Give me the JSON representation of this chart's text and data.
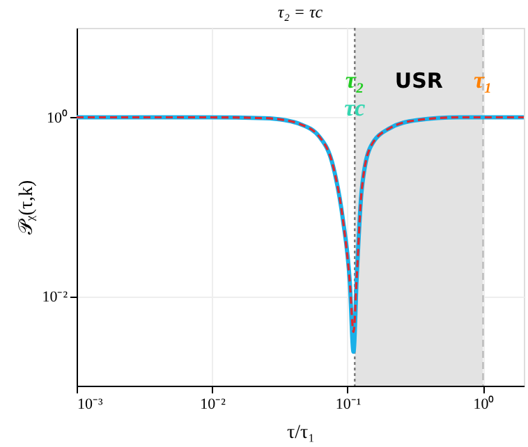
{
  "chart_data": {
    "type": "line",
    "title": "τ₂ = τc",
    "xlabel": "τ/τ₁",
    "ylabel": "𝒫ᵪ(τ,k)",
    "log": "xy",
    "grid": true,
    "xlim": [
      0.001,
      2
    ],
    "ylim": [
      0.001,
      10
    ],
    "xticks": [
      {
        "value": 0.001,
        "label": "10⁻³"
      },
      {
        "value": 0.01,
        "label": "10⁻²"
      },
      {
        "value": 0.1,
        "label": "10⁻¹"
      },
      {
        "value": 1,
        "label": "10⁰"
      }
    ],
    "yticks": [
      {
        "value": 0.01,
        "label": "10⁻²"
      },
      {
        "value": 1,
        "label": "10⁰"
      }
    ],
    "x": [
      0.001,
      0.0094,
      0.0243,
      0.0345,
      0.0437,
      0.0623,
      0.0789,
      0.0924,
      0.104,
      0.1106,
      0.117,
      0.127,
      0.148,
      0.203,
      0.326,
      0.662,
      2
    ],
    "series": [
      {
        "color": "#1ab0e8",
        "line_style": "solid",
        "values": [
          1,
          1,
          0.98,
          0.93,
          0.85,
          0.6,
          0.27,
          0.072,
          0.014,
          0.0024,
          0.017,
          0.15,
          0.47,
          0.75,
          0.93,
          1,
          1
        ]
      },
      {
        "color": "#e0282e",
        "line_style": "dashed",
        "values": [
          1,
          1,
          0.98,
          0.93,
          0.85,
          0.6,
          0.27,
          0.072,
          0.014,
          0.004,
          0.017,
          0.15,
          0.47,
          0.75,
          0.93,
          1,
          1
        ]
      }
    ],
    "ref_lines": [
      {
        "axis": "x",
        "value": 0.113,
        "color": "#777777",
        "line_style": "dotted",
        "label": "τ₂"
      },
      {
        "axis": "x",
        "value": 1,
        "color": "#bbbbbb",
        "line_style": "dashed",
        "label": "τ₁"
      }
    ],
    "bands": [
      {
        "axis": "x",
        "from": 0.113,
        "to": 1,
        "label": "USR",
        "color": "#e3e3e3"
      }
    ],
    "annotations": [
      "τc"
    ]
  }
}
